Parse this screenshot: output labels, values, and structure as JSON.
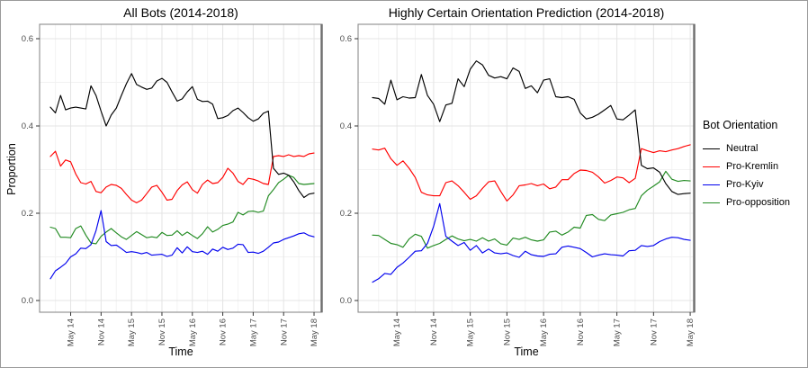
{
  "figure": {
    "y_axis_title": "Proportion",
    "x_axis_title": "Time",
    "y_tick_labels": [
      "0.0",
      "0.2",
      "0.4",
      "0.6"
    ],
    "x_tick_labels": [
      "May 14",
      "Nov 14",
      "May 15",
      "Nov 15",
      "May 16",
      "Nov 16",
      "May 17",
      "Nov 17",
      "May 18"
    ]
  },
  "legend": {
    "title": "Bot Orientation",
    "entries": [
      {
        "label": "Neutral",
        "color": "#000000"
      },
      {
        "label": "Pro-Kremlin",
        "color": "#FF0000"
      },
      {
        "label": "Pro-Kyiv",
        "color": "#0000EE"
      },
      {
        "label": "Pro-opposition",
        "color": "#228B22"
      }
    ]
  },
  "chart_data": [
    {
      "type": "line",
      "title": "All Bots (2014-2018)",
      "xlabel": "Time",
      "ylabel": "Proportion",
      "x_tick_labels": [
        "May 14",
        "Nov 14",
        "May 15",
        "Nov 15",
        "May 16",
        "Nov 16",
        "May 17",
        "Nov 17",
        "May 18"
      ],
      "x_unit": "monthly points, Jan 2014 - May 2018",
      "ylim": [
        0.0,
        0.6
      ],
      "y_ticks": [
        0.0,
        0.2,
        0.4,
        0.6
      ],
      "grid": true,
      "legend_position": "right-of-second-panel",
      "series": [
        {
          "name": "Neutral",
          "color": "#000000",
          "values": [
            0.443,
            0.43,
            0.47,
            0.437,
            0.441,
            0.443,
            0.441,
            0.439,
            0.492,
            0.47,
            0.434,
            0.4,
            0.425,
            0.441,
            0.47,
            0.497,
            0.52,
            0.495,
            0.489,
            0.484,
            0.487,
            0.503,
            0.509,
            0.5,
            0.478,
            0.457,
            0.462,
            0.478,
            0.49,
            0.461,
            0.456,
            0.457,
            0.45,
            0.417,
            0.419,
            0.424,
            0.435,
            0.441,
            0.431,
            0.419,
            0.411,
            0.416,
            0.429,
            0.434,
            0.303,
            0.289,
            0.292,
            0.287,
            0.272,
            0.252,
            0.236,
            0.244,
            0.246
          ]
        },
        {
          "name": "Pro-Kremlin",
          "color": "#FF0000",
          "values": [
            0.33,
            0.342,
            0.308,
            0.322,
            0.318,
            0.29,
            0.27,
            0.267,
            0.273,
            0.25,
            0.247,
            0.26,
            0.266,
            0.264,
            0.257,
            0.243,
            0.23,
            0.224,
            0.23,
            0.245,
            0.26,
            0.264,
            0.248,
            0.23,
            0.232,
            0.252,
            0.265,
            0.272,
            0.254,
            0.246,
            0.266,
            0.276,
            0.268,
            0.27,
            0.282,
            0.303,
            0.292,
            0.273,
            0.266,
            0.28,
            0.278,
            0.274,
            0.268,
            0.266,
            0.33,
            0.332,
            0.33,
            0.334,
            0.33,
            0.332,
            0.33,
            0.336,
            0.338
          ]
        },
        {
          "name": "Pro-Kyiv",
          "color": "#0000EE",
          "values": [
            0.05,
            0.068,
            0.076,
            0.085,
            0.1,
            0.107,
            0.12,
            0.119,
            0.128,
            0.16,
            0.206,
            0.135,
            0.126,
            0.127,
            0.119,
            0.11,
            0.112,
            0.11,
            0.107,
            0.11,
            0.104,
            0.105,
            0.106,
            0.101,
            0.104,
            0.121,
            0.109,
            0.123,
            0.112,
            0.11,
            0.113,
            0.106,
            0.118,
            0.113,
            0.122,
            0.117,
            0.12,
            0.129,
            0.128,
            0.11,
            0.111,
            0.108,
            0.113,
            0.122,
            0.132,
            0.134,
            0.14,
            0.144,
            0.148,
            0.153,
            0.155,
            0.149,
            0.146
          ]
        },
        {
          "name": "Pro-opposition",
          "color": "#228B22",
          "values": [
            0.168,
            0.165,
            0.145,
            0.145,
            0.144,
            0.165,
            0.171,
            0.15,
            0.132,
            0.13,
            0.147,
            0.157,
            0.165,
            0.155,
            0.146,
            0.14,
            0.149,
            0.158,
            0.151,
            0.144,
            0.146,
            0.144,
            0.156,
            0.149,
            0.15,
            0.16,
            0.149,
            0.157,
            0.149,
            0.142,
            0.153,
            0.169,
            0.157,
            0.163,
            0.172,
            0.175,
            0.18,
            0.202,
            0.196,
            0.204,
            0.205,
            0.202,
            0.205,
            0.24,
            0.254,
            0.27,
            0.278,
            0.287,
            0.282,
            0.268,
            0.266,
            0.267,
            0.268
          ]
        }
      ]
    },
    {
      "type": "line",
      "title": "Highly Certain Orientation Prediction (2014-2018)",
      "xlabel": "Time",
      "ylabel": "Proportion",
      "x_tick_labels": [
        "May 14",
        "Nov 14",
        "May 15",
        "Nov 15",
        "May 16",
        "Nov 16",
        "May 17",
        "Nov 17",
        "May 18"
      ],
      "x_unit": "monthly points, Jan 2014 - May 2018",
      "ylim": [
        0.0,
        0.6
      ],
      "y_ticks": [
        0.0,
        0.2,
        0.4,
        0.6
      ],
      "grid": true,
      "series": [
        {
          "name": "Neutral",
          "color": "#000000",
          "values": [
            0.465,
            0.463,
            0.45,
            0.505,
            0.46,
            0.467,
            0.464,
            0.465,
            0.518,
            0.47,
            0.45,
            0.41,
            0.448,
            0.452,
            0.508,
            0.49,
            0.53,
            0.549,
            0.54,
            0.516,
            0.51,
            0.513,
            0.508,
            0.533,
            0.525,
            0.486,
            0.492,
            0.476,
            0.505,
            0.508,
            0.467,
            0.465,
            0.467,
            0.461,
            0.43,
            0.416,
            0.42,
            0.427,
            0.437,
            0.447,
            0.416,
            0.414,
            0.425,
            0.437,
            0.31,
            0.302,
            0.304,
            0.294,
            0.268,
            0.25,
            0.243,
            0.245,
            0.246
          ]
        },
        {
          "name": "Pro-Kremlin",
          "color": "#FF0000",
          "values": [
            0.347,
            0.345,
            0.349,
            0.325,
            0.31,
            0.32,
            0.303,
            0.282,
            0.248,
            0.242,
            0.24,
            0.24,
            0.27,
            0.274,
            0.263,
            0.248,
            0.232,
            0.24,
            0.257,
            0.272,
            0.274,
            0.25,
            0.228,
            0.242,
            0.263,
            0.265,
            0.268,
            0.263,
            0.267,
            0.256,
            0.26,
            0.277,
            0.277,
            0.291,
            0.299,
            0.298,
            0.294,
            0.283,
            0.269,
            0.275,
            0.283,
            0.281,
            0.27,
            0.28,
            0.348,
            0.343,
            0.339,
            0.343,
            0.341,
            0.345,
            0.348,
            0.353,
            0.357
          ]
        },
        {
          "name": "Pro-Kyiv",
          "color": "#0000EE",
          "values": [
            0.042,
            0.05,
            0.062,
            0.06,
            0.076,
            0.086,
            0.099,
            0.113,
            0.114,
            0.131,
            0.17,
            0.222,
            0.147,
            0.136,
            0.126,
            0.133,
            0.115,
            0.126,
            0.109,
            0.118,
            0.109,
            0.107,
            0.109,
            0.103,
            0.099,
            0.113,
            0.105,
            0.102,
            0.101,
            0.106,
            0.107,
            0.122,
            0.125,
            0.122,
            0.119,
            0.11,
            0.1,
            0.104,
            0.107,
            0.105,
            0.104,
            0.102,
            0.114,
            0.115,
            0.126,
            0.124,
            0.126,
            0.135,
            0.141,
            0.145,
            0.144,
            0.14,
            0.138
          ]
        },
        {
          "name": "Pro-opposition",
          "color": "#228B22",
          "values": [
            0.15,
            0.149,
            0.14,
            0.131,
            0.128,
            0.122,
            0.141,
            0.152,
            0.147,
            0.12,
            0.126,
            0.131,
            0.14,
            0.148,
            0.141,
            0.137,
            0.14,
            0.136,
            0.144,
            0.136,
            0.141,
            0.13,
            0.127,
            0.143,
            0.14,
            0.145,
            0.139,
            0.136,
            0.139,
            0.157,
            0.159,
            0.15,
            0.157,
            0.168,
            0.166,
            0.195,
            0.197,
            0.186,
            0.183,
            0.196,
            0.199,
            0.202,
            0.208,
            0.211,
            0.24,
            0.253,
            0.262,
            0.272,
            0.296,
            0.278,
            0.273,
            0.275,
            0.274
          ]
        }
      ]
    }
  ]
}
